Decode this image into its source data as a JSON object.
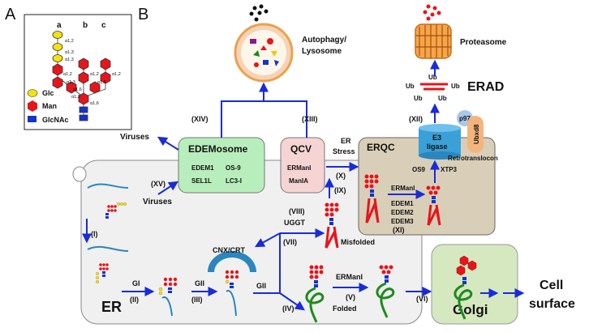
{
  "panels": {
    "a": "A",
    "b": "B"
  },
  "glycan_key": {
    "cols": [
      "a",
      "b",
      "c"
    ],
    "linkages": [
      "α1,2",
      "α1,3",
      "α1,3",
      "α1,2",
      "α1,2",
      "α1,2",
      "α1,3",
      "α1,6",
      "α1,6",
      "α1,3",
      "α1,6"
    ],
    "legend": [
      {
        "label": "Glc",
        "color": "#f5e10f"
      },
      {
        "label": "Man",
        "color": "#e8141b"
      },
      {
        "label": "GlcNAc",
        "color": "#1433cc"
      }
    ]
  },
  "compartments": {
    "er": "ER",
    "golgi": "Golgi",
    "cell_surface": [
      "Cell",
      "surface"
    ],
    "erqc": "ERQC",
    "erad": "ERAD",
    "proteasome": "Proteasome",
    "autophagy": [
      "Autophagy/",
      "Lysosome"
    ]
  },
  "boxes": {
    "edemosome": {
      "title": "EDEMosome",
      "items": [
        "EDEM1",
        "OS-9",
        "SEL1L",
        "LC3-I"
      ]
    },
    "qcv": {
      "title": "QCV",
      "items": [
        "ERManI",
        "ManIA"
      ]
    }
  },
  "steps": [
    "(I)",
    "(II)",
    "(III)",
    "(IV)",
    "(V)",
    "(VI)",
    "(VII)",
    "(VIII)",
    "(IX)",
    "(X)",
    "(XI)",
    "(XII)",
    "(XIII)",
    "(XIV)",
    "(XV)"
  ],
  "labels": {
    "viruses_out": "Viruses",
    "viruses_in": "Viruses",
    "er_stress": [
      "ER",
      "Stress"
    ],
    "gi": "GI",
    "gii_1": "GII",
    "gii_2": "GII",
    "cnx_crt": "CNX/CRT",
    "uggt": "UGGT",
    "misfolded": "Misfolded",
    "folded": "Folded",
    "ermani_1": "ERManI",
    "ermani_2": "ERManI",
    "edem_list": [
      "EDEM1",
      "EDEM2",
      "EDEM3"
    ],
    "os9": "OS9",
    "xtp3": "XTP3",
    "retrotranslocon": "Retrotranslocon",
    "e3": [
      "E3",
      "ligase"
    ],
    "p97": "p97",
    "ubxd8": "Ubxd8",
    "ub": [
      "Ub",
      "Ub",
      "Ub",
      "Ub",
      "Ub"
    ]
  }
}
